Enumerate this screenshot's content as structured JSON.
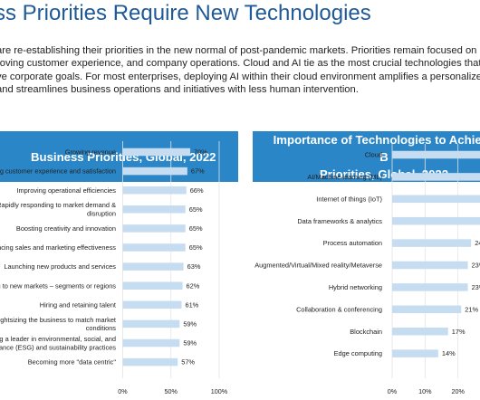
{
  "header": {
    "title": "ss Priorities Require New Technologies",
    "intro_lines": [
      "are re-establishing their priorities in the new normal of post-pandemic markets. Priorities remain focused on re",
      "roving customer experience, and company operations. Cloud and AI tie as the most crucial technologies that c",
      "ve corporate goals. For most enterprises, deploying AI within their cloud environment amplifies a personalized",
      "and streamlines business operations and initiatives with less human intervention."
    ]
  },
  "colors": {
    "band": "#2b86c7",
    "bar": "#c6dcf0",
    "title": "#1f5a96"
  },
  "chart_data": [
    {
      "type": "bar",
      "orientation": "horizontal",
      "title_lines": [
        "Business Priorities, Global, 2022"
      ],
      "categories": [
        [
          "Growing revenue"
        ],
        [
          "ing customer experience and satisfaction"
        ],
        [
          "Improving operational efficiencies"
        ],
        [
          "Rapidly responding to market demand &",
          "disruption"
        ],
        [
          "Boosting creativity and innovation"
        ],
        [
          "ancing sales and marketing effectiveness"
        ],
        [
          "Launching new products and services"
        ],
        [
          "ng to new markets – segments or regions"
        ],
        [
          "Hiring and retaining talent"
        ],
        [
          "Rightsizing the business to match market",
          "conditions"
        ],
        [
          "g a leader in environmental, social, and",
          "nance (ESG) and sustainability practices"
        ],
        [
          "Becoming more \"data centric\""
        ]
      ],
      "values": [
        70,
        67,
        66,
        65,
        65,
        65,
        63,
        62,
        61,
        59,
        59,
        57
      ],
      "value_labels": [
        "70%",
        "67%",
        "66%",
        "65%",
        "65%",
        "65%",
        "63%",
        "62%",
        "61%",
        "59%",
        "59%",
        "57%"
      ],
      "xlim": [
        0,
        100
      ],
      "xticks": [
        0,
        50,
        100
      ],
      "xtick_labels": [
        "0%",
        "50%",
        "100%"
      ]
    },
    {
      "type": "bar",
      "orientation": "horizontal",
      "title_lines": [
        "Importance of Technologies to Achieve B",
        "Priorities, Global, 2022"
      ],
      "categories": [
        [
          "Cloud"
        ],
        [
          "AI/Machine learning (ML)"
        ],
        [
          "Internet of things (IoT)"
        ],
        [
          "Data frameworks & analytics"
        ],
        [
          "Process automation"
        ],
        [
          "Augmented/Virtual/Mixed reality/Metaverse"
        ],
        [
          "Hybrid networking"
        ],
        [
          "Collaboration & conferencing"
        ],
        [
          "Blockchain"
        ],
        [
          "Edge computing"
        ]
      ],
      "values": [
        27,
        27,
        27,
        27,
        24,
        23,
        23,
        21,
        17,
        14
      ],
      "value_labels": [
        "",
        "",
        "",
        "",
        "24",
        "23%",
        "23%",
        "21%",
        "17%",
        "14%"
      ],
      "xlim": [
        0,
        30
      ],
      "xticks": [
        0,
        10,
        20
      ],
      "xtick_labels": [
        "0%",
        "10%",
        "20%"
      ]
    }
  ]
}
